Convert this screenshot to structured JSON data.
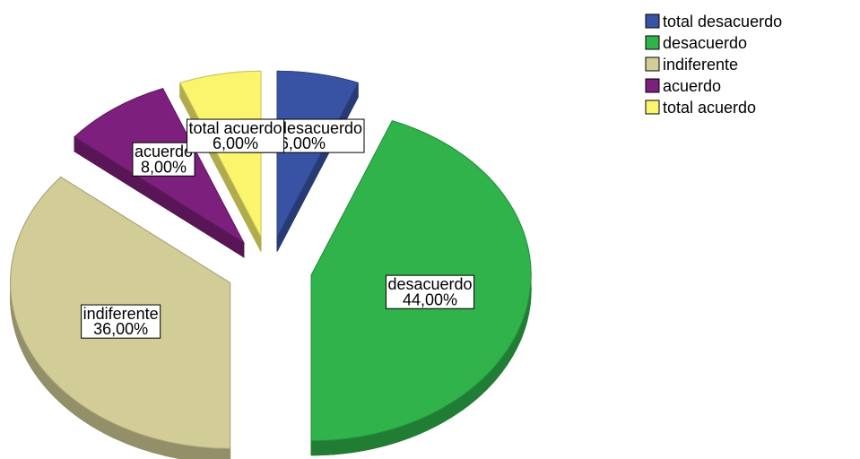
{
  "chart_data": {
    "type": "pie",
    "categories": [
      "total desacuerdo",
      "desacuerdo",
      "indiferente",
      "acuerdo",
      "total acuerdo"
    ],
    "values": [
      6,
      44,
      36,
      8,
      6
    ],
    "value_labels": [
      "6,00%",
      "44,00%",
      "36,00%",
      "8,00%",
      "6,00%"
    ],
    "colors": [
      "#3953a4",
      "#2fb34a",
      "#d2cc96",
      "#7d1f7c",
      "#fbf56e"
    ],
    "legend": "top-right"
  }
}
